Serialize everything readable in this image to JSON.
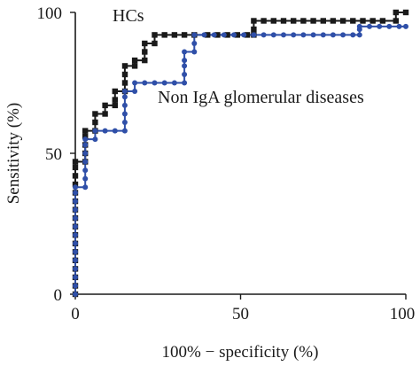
{
  "chart_data": {
    "type": "line",
    "xlabel": "100% − specificity (%)",
    "ylabel": "Sensitivity (%)",
    "xlim": [
      0,
      100
    ],
    "ylim": [
      0,
      100
    ],
    "x_ticks": [
      "0",
      "50",
      "100"
    ],
    "y_ticks": [
      "0",
      "50",
      "100"
    ],
    "annotations": [
      "HCs",
      "Non IgA glomerular diseases"
    ],
    "grid": false,
    "series": [
      {
        "name": "HCs",
        "color": "#1a1a1a",
        "marker": "square",
        "points": [
          [
            0,
            0
          ],
          [
            0,
            3
          ],
          [
            0,
            6
          ],
          [
            0,
            9
          ],
          [
            0,
            12
          ],
          [
            0,
            15
          ],
          [
            0,
            18
          ],
          [
            0,
            21
          ],
          [
            0,
            24
          ],
          [
            0,
            27
          ],
          [
            0,
            30
          ],
          [
            0,
            33
          ],
          [
            0,
            36
          ],
          [
            0,
            39
          ],
          [
            0,
            42
          ],
          [
            0,
            45
          ],
          [
            0,
            47
          ],
          [
            3,
            47
          ],
          [
            3,
            50
          ],
          [
            3,
            53
          ],
          [
            3,
            56
          ],
          [
            3,
            58
          ],
          [
            6,
            58
          ],
          [
            6,
            61
          ],
          [
            6,
            64
          ],
          [
            9,
            64
          ],
          [
            9,
            67
          ],
          [
            12,
            67
          ],
          [
            12,
            69
          ],
          [
            12,
            72
          ],
          [
            15,
            72
          ],
          [
            15,
            75
          ],
          [
            15,
            78
          ],
          [
            15,
            81
          ],
          [
            18,
            81
          ],
          [
            18,
            83
          ],
          [
            21,
            83
          ],
          [
            21,
            86
          ],
          [
            21,
            89
          ],
          [
            24,
            89
          ],
          [
            24,
            92
          ],
          [
            27,
            92
          ],
          [
            30,
            92
          ],
          [
            33,
            92
          ],
          [
            36,
            92
          ],
          [
            40,
            92
          ],
          [
            43,
            92
          ],
          [
            46,
            92
          ],
          [
            49,
            92
          ],
          [
            52,
            92
          ],
          [
            54,
            92
          ],
          [
            54,
            94
          ],
          [
            54,
            97
          ],
          [
            57,
            97
          ],
          [
            60,
            97
          ],
          [
            63,
            97
          ],
          [
            66,
            97
          ],
          [
            69,
            97
          ],
          [
            72,
            97
          ],
          [
            75,
            97
          ],
          [
            78,
            97
          ],
          [
            81,
            97
          ],
          [
            84,
            97
          ],
          [
            87,
            97
          ],
          [
            90,
            97
          ],
          [
            93,
            97
          ],
          [
            97,
            97
          ],
          [
            97,
            100
          ],
          [
            100,
            100
          ]
        ]
      },
      {
        "name": "Non IgA glomerular diseases",
        "color": "#2f4fa8",
        "marker": "circle",
        "points": [
          [
            0,
            0
          ],
          [
            0,
            3
          ],
          [
            0,
            6
          ],
          [
            0,
            9
          ],
          [
            0,
            12
          ],
          [
            0,
            15
          ],
          [
            0,
            18
          ],
          [
            0,
            21
          ],
          [
            0,
            24
          ],
          [
            0,
            27
          ],
          [
            0,
            30
          ],
          [
            0,
            33
          ],
          [
            0,
            36
          ],
          [
            0,
            38
          ],
          [
            3,
            38
          ],
          [
            3,
            41
          ],
          [
            3,
            44
          ],
          [
            3,
            47
          ],
          [
            3,
            50
          ],
          [
            3,
            53
          ],
          [
            3,
            55
          ],
          [
            6,
            55
          ],
          [
            6,
            58
          ],
          [
            9,
            58
          ],
          [
            12,
            58
          ],
          [
            15,
            58
          ],
          [
            15,
            61
          ],
          [
            15,
            64
          ],
          [
            15,
            67
          ],
          [
            15,
            70
          ],
          [
            15,
            72
          ],
          [
            18,
            72
          ],
          [
            18,
            75
          ],
          [
            21,
            75
          ],
          [
            24,
            75
          ],
          [
            27,
            75
          ],
          [
            30,
            75
          ],
          [
            33,
            75
          ],
          [
            33,
            78
          ],
          [
            33,
            81
          ],
          [
            33,
            83
          ],
          [
            33,
            86
          ],
          [
            36,
            86
          ],
          [
            36,
            89
          ],
          [
            36,
            92
          ],
          [
            39,
            92
          ],
          [
            42,
            92
          ],
          [
            45,
            92
          ],
          [
            48,
            92
          ],
          [
            51,
            92
          ],
          [
            54,
            92
          ],
          [
            57,
            92
          ],
          [
            60,
            92
          ],
          [
            63,
            92
          ],
          [
            66,
            92
          ],
          [
            69,
            92
          ],
          [
            72,
            92
          ],
          [
            75,
            92
          ],
          [
            78,
            92
          ],
          [
            81,
            92
          ],
          [
            84,
            92
          ],
          [
            86,
            92
          ],
          [
            86,
            94
          ],
          [
            86,
            95
          ],
          [
            89,
            95
          ],
          [
            92,
            95
          ],
          [
            95,
            95
          ],
          [
            98,
            95
          ],
          [
            100,
            95
          ]
        ]
      }
    ]
  }
}
